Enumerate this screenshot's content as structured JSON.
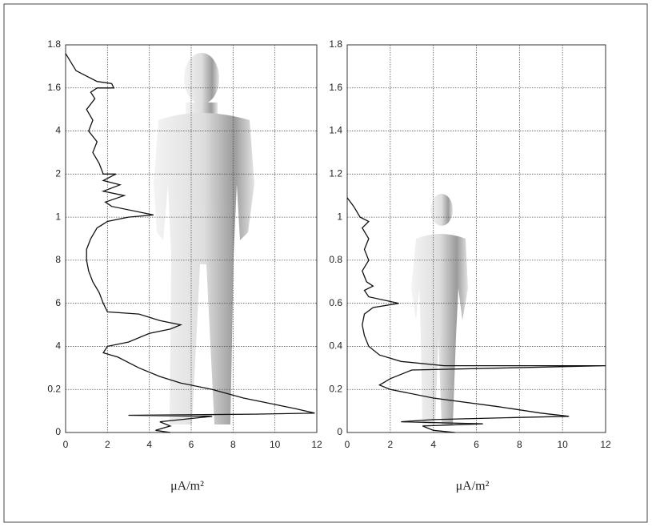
{
  "chart_data": [
    {
      "type": "line",
      "x_label": "μA/m²",
      "xlim": [
        0,
        12
      ],
      "xticks": [
        0,
        2,
        4,
        6,
        8,
        10,
        12
      ],
      "ylim": [
        0,
        1.8
      ],
      "yticks": [
        0,
        0.2,
        {
          "value": 0.4,
          "label": "4"
        },
        {
          "value": 0.6,
          "label": "6"
        },
        {
          "value": 0.8,
          "label": "8"
        },
        1,
        {
          "value": 1.2,
          "label": "2"
        },
        {
          "value": 1.4,
          "label": "4"
        },
        1.6,
        1.8
      ],
      "grid": true,
      "series": [
        {
          "color": "#111111",
          "x": [
            0,
            0.5,
            1.5,
            2.2,
            2.3,
            1.5,
            1.2,
            1.4,
            1.0,
            1.3,
            1.1,
            1.5,
            1.3,
            1.6,
            1.8,
            2.4,
            1.8,
            2.6,
            1.8,
            2.8,
            1.9,
            2.2,
            4.2,
            3.0,
            2.0,
            1.5,
            1.2,
            1.0,
            1.0,
            1.1,
            1.3,
            1.6,
            1.8,
            2.0,
            3.5,
            4.5,
            5.5,
            5.0,
            4.0,
            3.0,
            2.0,
            1.8,
            2.5,
            3.5,
            4.5,
            5.5,
            7.0,
            8.5,
            10,
            11,
            11.9,
            9,
            3,
            7,
            4.5,
            5,
            4.3,
            5.0
          ],
          "values": [
            1.76,
            1.68,
            1.63,
            1.62,
            1.6,
            1.6,
            1.58,
            1.55,
            1.5,
            1.45,
            1.4,
            1.35,
            1.3,
            1.25,
            1.2,
            1.2,
            1.17,
            1.15,
            1.12,
            1.1,
            1.07,
            1.05,
            1.01,
            1.0,
            0.98,
            0.95,
            0.9,
            0.85,
            0.8,
            0.75,
            0.7,
            0.65,
            0.6,
            0.56,
            0.55,
            0.52,
            0.5,
            0.48,
            0.46,
            0.42,
            0.4,
            0.37,
            0.35,
            0.3,
            0.26,
            0.23,
            0.2,
            0.16,
            0.13,
            0.11,
            0.09,
            0.085,
            0.08,
            0.075,
            0.05,
            0.03,
            0.01,
            0
          ]
        }
      ]
    },
    {
      "type": "line",
      "x_label": "μA/m²",
      "xlim": [
        0,
        12
      ],
      "xticks": [
        0,
        2,
        4,
        6,
        8,
        10,
        12
      ],
      "ylim": [
        0,
        1.8
      ],
      "yticks": [
        0,
        0.2,
        0.4,
        0.6,
        0.8,
        1,
        1.2,
        1.4,
        1.6,
        1.8
      ],
      "grid": true,
      "series": [
        {
          "color": "#111111",
          "x": [
            0,
            0.3,
            0.6,
            1.0,
            0.7,
            1.0,
            0.8,
            1.0,
            0.7,
            0.9,
            1.2,
            0.8,
            1.0,
            2.4,
            1.2,
            0.8,
            0.7,
            0.8,
            1.0,
            1.5,
            2.5,
            4.5,
            12,
            3.0,
            2.0,
            1.5,
            2,
            4,
            7,
            9,
            10.3,
            8,
            4,
            2.5,
            6.3,
            3.5,
            4,
            5
          ],
          "values": [
            1.09,
            1.05,
            1.0,
            0.98,
            0.95,
            0.9,
            0.85,
            0.8,
            0.75,
            0.7,
            0.68,
            0.66,
            0.63,
            0.6,
            0.58,
            0.55,
            0.5,
            0.45,
            0.4,
            0.36,
            0.33,
            0.31,
            0.31,
            0.29,
            0.25,
            0.22,
            0.2,
            0.16,
            0.12,
            0.09,
            0.075,
            0.07,
            0.06,
            0.05,
            0.04,
            0.03,
            0.01,
            0
          ]
        }
      ]
    }
  ]
}
